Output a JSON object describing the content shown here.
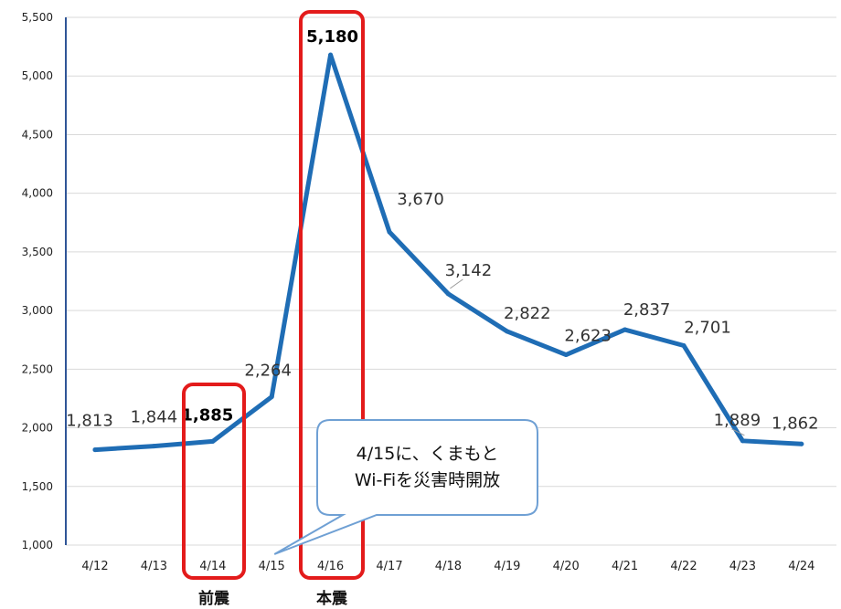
{
  "chart_data": {
    "type": "line",
    "categories": [
      "4/12",
      "4/13",
      "4/14",
      "4/15",
      "4/16",
      "4/17",
      "4/18",
      "4/19",
      "4/20",
      "4/21",
      "4/22",
      "4/23",
      "4/24"
    ],
    "values": [
      1813,
      1844,
      1885,
      2264,
      5180,
      3670,
      3142,
      2822,
      2623,
      2837,
      2701,
      1889,
      1862
    ],
    "data_labels": [
      "1,813",
      "1,844",
      "1,885",
      "2,264",
      "5,180",
      "3,670",
      "3,142",
      "2,822",
      "2,623",
      "2,837",
      "2,701",
      "1,889",
      "1,862"
    ],
    "y_ticks": [
      "1,000",
      "1,500",
      "2,000",
      "2,500",
      "3,000",
      "3,500",
      "4,000",
      "4,500",
      "5,000",
      "5,500"
    ],
    "ylim": [
      1000,
      5500
    ],
    "grid": true,
    "line_color": "#1f6db5",
    "highlight_color": "#e31b1b",
    "highlights": [
      {
        "category": "4/14",
        "label": "前震"
      },
      {
        "category": "4/16",
        "label": "本震"
      }
    ],
    "callout": {
      "lines": [
        "4/15に、くまもと",
        "Wi-Fiを災害時開放"
      ],
      "points_to": "4/15",
      "border_color": "#6fa0d4"
    }
  }
}
